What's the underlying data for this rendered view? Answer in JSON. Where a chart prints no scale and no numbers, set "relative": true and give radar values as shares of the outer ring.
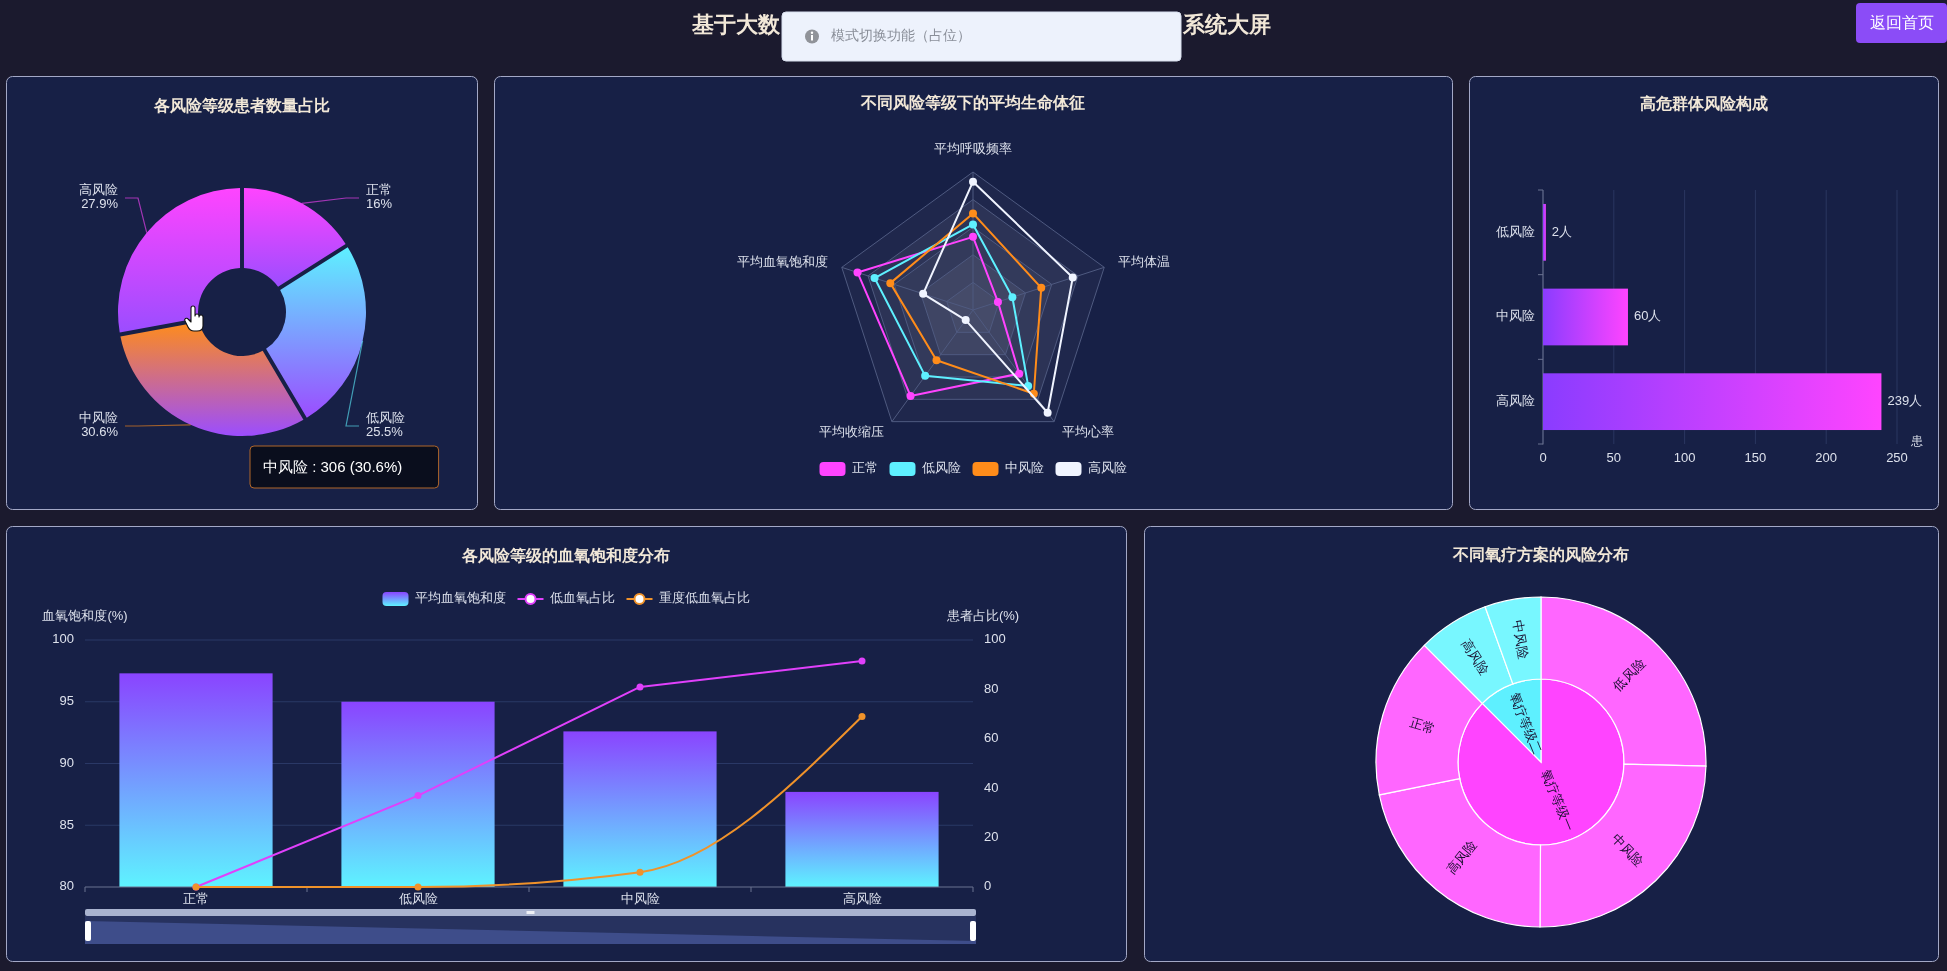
{
  "chart_data": [
    {
      "type": "other",
      "annotations": [
        "基于大数",
        "系统大屏",
        "模式切换功能（占位）",
        "返回首页"
      ]
    },
    {
      "type": "donut",
      "title": "各风险等级患者数量占比",
      "categories": [
        "正常",
        "低风险",
        "中风险",
        "高风险"
      ],
      "values": [
        16,
        25.5,
        30.6,
        27.9
      ],
      "colors": [
        "#ff44ff",
        "#5ef0ff",
        "#ff8c1a",
        "#ff44ff"
      ],
      "value_labels": [
        "16%",
        "25.5%",
        "30.6%",
        "27.9%"
      ],
      "annotations": [
        "中风险 : 306 (30.6%)"
      ]
    },
    {
      "type": "radar",
      "title": "不同风险等级下的平均生命体征",
      "categories": [
        "平均呼吸频率",
        "平均体温",
        "平均心率",
        "平均收缩压",
        "平均血氧饱和度"
      ],
      "relative": true,
      "series": [
        {
          "name": "正常",
          "color": "#ff44ff",
          "values": [
            0.53,
            0.19,
            0.57,
            0.77,
            0.88
          ]
        },
        {
          "name": "低风险",
          "color": "#5ef0ff",
          "values": [
            0.62,
            0.3,
            0.68,
            0.59,
            0.75
          ]
        },
        {
          "name": "中风险",
          "color": "#ff8c1a",
          "values": [
            0.7,
            0.52,
            0.75,
            0.45,
            0.63
          ]
        },
        {
          "name": "高风险",
          "color": "#f0f4ff",
          "values": [
            0.93,
            0.76,
            0.92,
            0.09,
            0.38
          ]
        }
      ],
      "legend": "bottom",
      "marker": "circle"
    },
    {
      "type": "bar",
      "orientation": "horizontal",
      "title": "高危群体风险构成",
      "categories": [
        "低风险",
        "中风险",
        "高风险"
      ],
      "values": [
        2,
        60,
        239
      ],
      "color": "#ff44ff",
      "value_labels": [
        "2人",
        "60人",
        "239人"
      ],
      "xlim": [
        0,
        250
      ],
      "xticks": [
        0,
        50,
        100,
        150,
        200,
        250
      ],
      "xlabel": "患",
      "grid": "x"
    },
    {
      "type": "bar",
      "title": "各风险等级的血氧饱和度分布",
      "categories": [
        "正常",
        "低风险",
        "中风险",
        "高风险"
      ],
      "series": [
        {
          "name": "平均血氧饱和度",
          "type": "bar",
          "color": "#8a44ff",
          "values": [
            97.3,
            95,
            92.6,
            87.7
          ]
        },
        {
          "name": "低血氧占比",
          "type": "line",
          "axis": "y2",
          "color": "#e040fb",
          "values": [
            0,
            37,
            81,
            91.5
          ]
        },
        {
          "name": "重度低血氧占比",
          "type": "line",
          "axis": "y2",
          "color": "#f0922a",
          "values": [
            0,
            0,
            6,
            69
          ]
        }
      ],
      "ylabel": "血氧饱和度(%)",
      "y2label": "患者占比(%)",
      "ylim": [
        80,
        100
      ],
      "yticks": [
        80,
        85,
        90,
        95,
        100
      ],
      "y2lim": [
        0,
        100
      ],
      "y2ticks": [
        0,
        20,
        40,
        60,
        80,
        100
      ],
      "grid": "y",
      "legend": "top",
      "marker": "circle"
    },
    {
      "type": "pie",
      "title": "不同氧疗方案的风险分布",
      "categories": [
        "氧疗等级一",
        "氧疗等级二"
      ],
      "values": [
        87.5,
        12.5
      ],
      "colors": [
        "#ff44ff",
        "#5ef0ff"
      ]
    },
    {
      "type": "donut",
      "categories": [
        "低风险",
        "中风险",
        "高风险",
        "正常",
        "高风险",
        "中风险"
      ],
      "values": [
        25.4,
        24.7,
        21.7,
        15.7,
        7,
        5.5
      ],
      "colors": [
        "#ff66ff",
        "#ff66ff",
        "#ff66ff",
        "#ff66ff",
        "#78f7ff",
        "#78f7ff"
      ]
    }
  ]
}
